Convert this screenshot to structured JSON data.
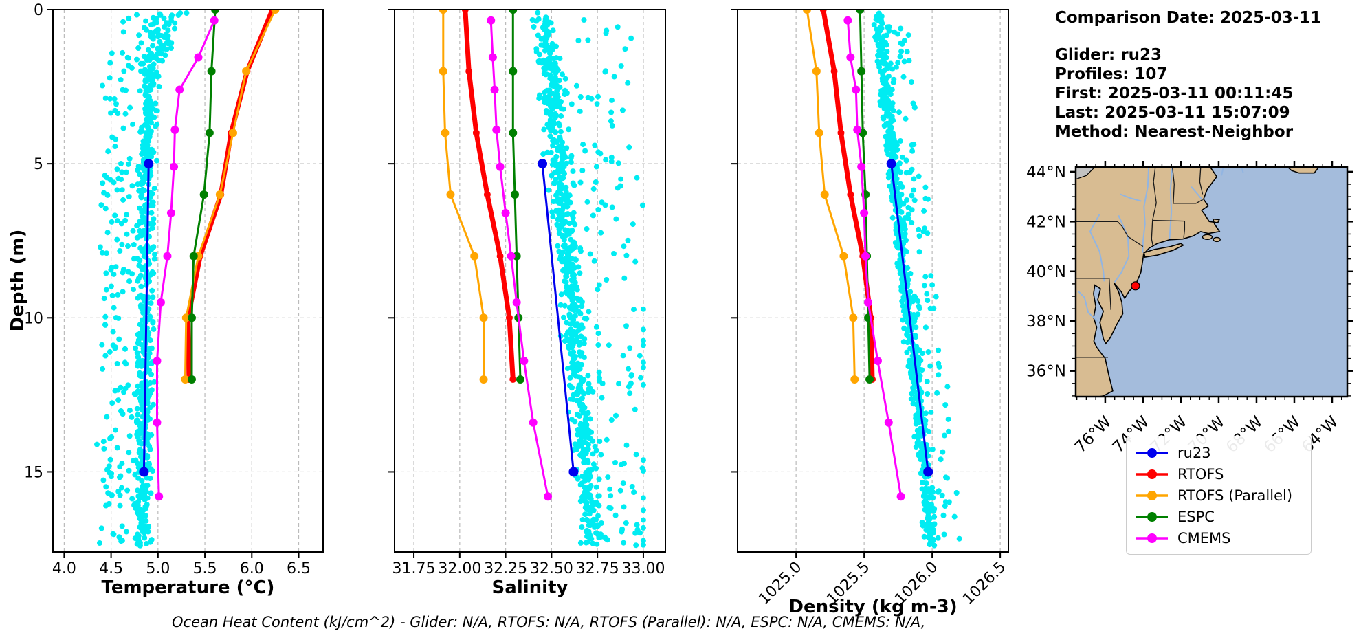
{
  "info_panel": {
    "comparison_date": "Comparison Date: 2025-03-11",
    "glider": "Glider: ru23",
    "profiles": "Profiles: 107",
    "first": "First: 2025-03-11 00:11:45",
    "last": "Last: 2025-03-11 15:07:09",
    "method": "Method: Nearest-Neighbor"
  },
  "footer": {
    "ohc_text": "Ocean Heat Content (kJ/cm^2) - Glider: N/A,  RTOFS: N/A,  RTOFS (Parallel): N/A,  ESPC: N/A,  CMEMS: N/A,"
  },
  "ylabel": "Depth (m)",
  "legend": {
    "items": [
      {
        "label": "ru23",
        "color": "#0000ee"
      },
      {
        "label": "RTOFS",
        "color": "#ff0000"
      },
      {
        "label": "RTOFS (Parallel)",
        "color": "#ffa500"
      },
      {
        "label": "ESPC",
        "color": "#008000"
      },
      {
        "label": "CMEMS",
        "color": "#ff00ff"
      }
    ]
  },
  "colors": {
    "scatter": "#00ecf2",
    "grid": "#bbbbbb",
    "spine": "#000000"
  },
  "chart_data": [
    {
      "type": "scatter",
      "id": "temperature",
      "xlabel": "Temperature (°C)",
      "ylabel": "Depth (m)",
      "xlim": [
        3.88,
        6.76
      ],
      "ylim": [
        0,
        17.6
      ],
      "xticks": [
        4.0,
        4.5,
        5.0,
        5.5,
        6.0,
        6.5
      ],
      "xtick_labels": [
        "4.0",
        "4.5",
        "5.0",
        "5.5",
        "6.0",
        "6.5"
      ],
      "yticks": [
        0,
        5,
        10,
        15
      ],
      "rotate_xticklabels": false,
      "scatter": {
        "name": "glider-points",
        "seed": 101,
        "count": 820,
        "c0": 4.9,
        "slope": -0.004,
        "sig": 0.11,
        "tail": {
          "p": 0.22,
          "s": -1,
          "min": 0.15,
          "max": 0.45
        },
        "shallow": {
          "d": 2.6,
          "amt": 0.45
        },
        "clip": [
          4.33,
          5.5
        ]
      },
      "series": [
        {
          "name": "ru23",
          "color": "#0000ee",
          "lw": 3,
          "ms": 7,
          "depths": [
            5,
            15
          ],
          "values": [
            4.9,
            4.85
          ]
        },
        {
          "name": "RTOFS",
          "color": "#ff0000",
          "lw": 7,
          "ms": 5,
          "depths": [
            0,
            2,
            4,
            6,
            8,
            10,
            12
          ],
          "values": [
            6.22,
            5.95,
            5.78,
            5.67,
            5.45,
            5.32,
            5.33
          ]
        },
        {
          "name": "RTOFS (Parallel)",
          "color": "#ffa500",
          "lw": 3,
          "ms": 6,
          "depths": [
            0,
            2,
            4,
            6,
            8,
            10,
            12
          ],
          "values": [
            6.25,
            5.94,
            5.8,
            5.66,
            5.43,
            5.3,
            5.29
          ]
        },
        {
          "name": "ESPC",
          "color": "#008000",
          "lw": 3,
          "ms": 6,
          "depths": [
            0,
            2,
            4,
            6,
            8,
            10,
            12
          ],
          "values": [
            5.61,
            5.57,
            5.55,
            5.49,
            5.38,
            5.36,
            5.36
          ]
        },
        {
          "name": "CMEMS",
          "color": "#ff00ff",
          "lw": 3,
          "ms": 6,
          "depths": [
            0.35,
            1.55,
            2.6,
            3.9,
            5.1,
            6.6,
            8.0,
            9.5,
            11.4,
            13.4,
            15.8
          ],
          "values": [
            5.6,
            5.43,
            5.23,
            5.18,
            5.17,
            5.14,
            5.1,
            5.03,
            4.99,
            4.99,
            5.01
          ]
        }
      ]
    },
    {
      "type": "scatter",
      "id": "salinity",
      "xlabel": "Salinity",
      "xlim": [
        31.645,
        33.12
      ],
      "ylim": [
        0,
        17.6
      ],
      "xticks": [
        31.75,
        32.0,
        32.25,
        32.5,
        32.75,
        33.0
      ],
      "xtick_labels": [
        "31.75",
        "32.00",
        "32.25",
        "32.50",
        "32.75",
        "33.00"
      ],
      "yticks": [
        0,
        5,
        10,
        15
      ],
      "rotate_xticklabels": false,
      "scatter": {
        "name": "glider-points",
        "seed": 202,
        "count": 820,
        "c0": 32.46,
        "slope": 0.016,
        "sig": 0.075,
        "tail": {
          "p": 0.17,
          "s": 1,
          "min": 0.08,
          "max": 0.42
        },
        "shallow": {
          "d": 0,
          "amt": 0
        },
        "clip": [
          31.98,
          33.0
        ]
      },
      "series": [
        {
          "name": "ru23",
          "color": "#0000ee",
          "lw": 3,
          "ms": 7,
          "depths": [
            5,
            15
          ],
          "values": [
            32.45,
            32.62
          ]
        },
        {
          "name": "RTOFS",
          "color": "#ff0000",
          "lw": 7,
          "ms": 5,
          "depths": [
            0,
            2,
            4,
            6,
            8,
            10,
            12
          ],
          "values": [
            32.03,
            32.05,
            32.09,
            32.15,
            32.22,
            32.27,
            32.29
          ]
        },
        {
          "name": "RTOFS (Parallel)",
          "color": "#ffa500",
          "lw": 3,
          "ms": 6,
          "depths": [
            0,
            2,
            4,
            6,
            8,
            10,
            12
          ],
          "values": [
            31.91,
            31.91,
            31.92,
            31.95,
            32.08,
            32.13,
            32.13
          ]
        },
        {
          "name": "ESPC",
          "color": "#008000",
          "lw": 3,
          "ms": 6,
          "depths": [
            0,
            2,
            4,
            6,
            8,
            10,
            12
          ],
          "values": [
            32.29,
            32.29,
            32.29,
            32.3,
            32.31,
            32.32,
            32.33
          ]
        },
        {
          "name": "CMEMS",
          "color": "#ff00ff",
          "lw": 3,
          "ms": 6,
          "depths": [
            0.35,
            1.55,
            2.6,
            3.9,
            5.1,
            6.6,
            8.0,
            9.5,
            11.4,
            13.4,
            15.8
          ],
          "values": [
            32.17,
            32.18,
            32.19,
            32.2,
            32.22,
            32.25,
            32.28,
            32.31,
            32.35,
            32.4,
            32.48
          ]
        }
      ]
    },
    {
      "type": "scatter",
      "id": "density",
      "xlabel": "Density (kg m-3)",
      "xlim": [
        1024.57,
        1026.56
      ],
      "ylim": [
        0,
        17.6
      ],
      "xticks": [
        1025.0,
        1025.5,
        1026.0,
        1026.5
      ],
      "xtick_labels": [
        "1025.0",
        "1025.5",
        "1026.0",
        "1026.5"
      ],
      "yticks": [
        0,
        5,
        10,
        15
      ],
      "rotate_xticklabels": true,
      "scatter": {
        "name": "glider-points",
        "seed": 303,
        "count": 820,
        "c0": 1025.6,
        "slope": 0.023,
        "sig": 0.05,
        "tail": {
          "p": 0.14,
          "s": 1,
          "min": 0.04,
          "max": 0.2
        },
        "shallow": {
          "d": 0,
          "amt": 0
        },
        "clip": [
          1025.46,
          1026.2
        ]
      },
      "series": [
        {
          "name": "ru23",
          "color": "#0000ee",
          "lw": 3,
          "ms": 7,
          "depths": [
            5,
            15
          ],
          "values": [
            1025.7,
            1025.97
          ]
        },
        {
          "name": "RTOFS",
          "color": "#ff0000",
          "lw": 7,
          "ms": 5,
          "depths": [
            0,
            2,
            4,
            6,
            8,
            10,
            12
          ],
          "values": [
            1025.2,
            1025.28,
            1025.33,
            1025.4,
            1025.49,
            1025.55,
            1025.56
          ]
        },
        {
          "name": "RTOFS (Parallel)",
          "color": "#ffa500",
          "lw": 3,
          "ms": 6,
          "depths": [
            0,
            2,
            4,
            6,
            8,
            10,
            12
          ],
          "values": [
            1025.08,
            1025.15,
            1025.17,
            1025.21,
            1025.35,
            1025.42,
            1025.43
          ]
        },
        {
          "name": "ESPC",
          "color": "#008000",
          "lw": 3,
          "ms": 6,
          "depths": [
            0,
            2,
            4,
            6,
            8,
            10,
            12
          ],
          "values": [
            1025.47,
            1025.48,
            1025.49,
            1025.51,
            1025.52,
            1025.53,
            1025.54
          ]
        },
        {
          "name": "CMEMS",
          "color": "#ff00ff",
          "lw": 3,
          "ms": 6,
          "depths": [
            0.35,
            1.55,
            2.6,
            3.9,
            5.1,
            6.6,
            8.0,
            9.5,
            11.4,
            13.4,
            15.8
          ],
          "values": [
            1025.38,
            1025.4,
            1025.44,
            1025.45,
            1025.48,
            1025.5,
            1025.51,
            1025.53,
            1025.6,
            1025.68,
            1025.77
          ]
        }
      ]
    }
  ],
  "map": {
    "extent": {
      "lon_min": -77.56,
      "lon_max": -63.2,
      "lat_min": 34.97,
      "lat_max": 44.19
    },
    "lat_ticks": [
      {
        "v": 44,
        "label": "44°N"
      },
      {
        "v": 42,
        "label": "42°N"
      },
      {
        "v": 40,
        "label": "40°N"
      },
      {
        "v": 38,
        "label": "38°N"
      },
      {
        "v": 36,
        "label": "36°N"
      }
    ],
    "lon_ticks": [
      {
        "v": -76,
        "label": "76°W"
      },
      {
        "v": -74,
        "label": "74°W"
      },
      {
        "v": -72,
        "label": "72°W"
      },
      {
        "v": -70,
        "label": "70°W"
      },
      {
        "v": -68,
        "label": "68°W"
      },
      {
        "v": -66,
        "label": "66°W"
      },
      {
        "v": -64,
        "label": "64°W"
      }
    ],
    "colors": {
      "land": "#d8bc92",
      "ocean": "#a4bcdc",
      "river": "#92b5e2",
      "lake": "#c2c2c2",
      "coast": "#000000",
      "border": "#1a1a1a"
    },
    "marker": {
      "name": "glider-location",
      "lon": -74.4,
      "lat": 39.42,
      "color": "#ff0000"
    }
  }
}
